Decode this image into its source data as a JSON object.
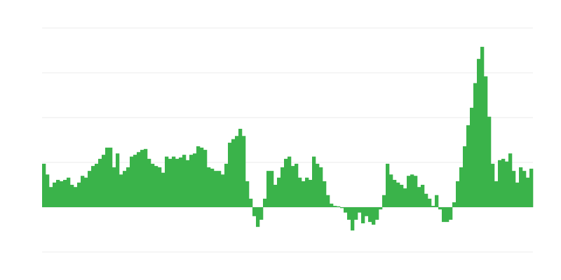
{
  "chart_data": {
    "type": "bar",
    "color": "#3ab34a",
    "grid": true,
    "ylim": [
      -1,
      4
    ],
    "yticks": [
      -1,
      0,
      1,
      2,
      3,
      4
    ],
    "values": [
      0.97,
      0.73,
      0.45,
      0.55,
      0.61,
      0.58,
      0.61,
      0.66,
      0.5,
      0.45,
      0.55,
      0.7,
      0.66,
      0.81,
      0.92,
      0.97,
      1.08,
      1.17,
      1.33,
      1.33,
      0.89,
      1.2,
      0.73,
      0.81,
      0.89,
      1.13,
      1.17,
      1.23,
      1.28,
      1.3,
      1.08,
      0.97,
      0.92,
      0.89,
      0.77,
      1.13,
      1.08,
      1.13,
      1.08,
      1.11,
      1.17,
      1.05,
      1.17,
      1.2,
      1.36,
      1.33,
      1.28,
      0.89,
      0.86,
      0.81,
      0.81,
      0.73,
      0.97,
      1.44,
      1.52,
      1.59,
      1.75,
      1.59,
      0.58,
      0.19,
      -0.2,
      -0.44,
      -0.28,
      0.19,
      0.81,
      0.81,
      0.5,
      0.66,
      0.89,
      1.08,
      1.13,
      0.92,
      0.97,
      0.66,
      0.58,
      0.66,
      0.61,
      1.13,
      0.97,
      0.89,
      0.58,
      0.27,
      0.08,
      0.03,
      0.02,
      -0.02,
      -0.12,
      -0.28,
      -0.52,
      -0.28,
      -0.12,
      -0.36,
      -0.2,
      -0.33,
      -0.39,
      -0.28,
      -0.05,
      0.27,
      0.97,
      0.73,
      0.61,
      0.55,
      0.5,
      0.42,
      0.7,
      0.73,
      0.7,
      0.45,
      0.5,
      0.3,
      0.19,
      0.03,
      0.27,
      -0.05,
      -0.33,
      -0.33,
      -0.28,
      0.11,
      0.58,
      0.89,
      1.36,
      1.83,
      2.22,
      2.77,
      3.31,
      3.58,
      2.92,
      2.02,
      0.97,
      0.58,
      1.05,
      1.08,
      1.02,
      1.2,
      0.81,
      0.55,
      0.89,
      0.81,
      0.66,
      0.86
    ]
  }
}
